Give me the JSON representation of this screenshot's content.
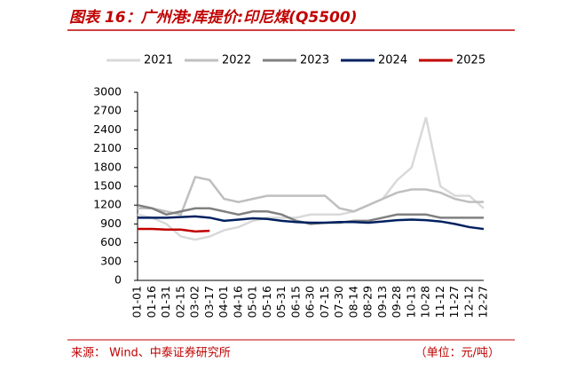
{
  "chart_data": {
    "type": "line",
    "title": "图表 16：广州港:库提价:印尼煤(Q5500)",
    "source": "来源：  Wind、中泰证券研究所",
    "unit_note": "（单位：元/吨）",
    "categories": [
      "01-01",
      "01-16",
      "01-31",
      "02-15",
      "03-02",
      "03-17",
      "04-01",
      "04-16",
      "05-01",
      "05-16",
      "05-31",
      "06-15",
      "06-30",
      "07-15",
      "07-30",
      "08-14",
      "08-29",
      "09-13",
      "09-28",
      "10-13",
      "10-28",
      "11-12",
      "11-27",
      "12-12",
      "12-27"
    ],
    "series": [
      {
        "name": "2021",
        "color": "#d9d9d9",
        "values": [
          1050,
          1000,
          900,
          700,
          650,
          700,
          800,
          850,
          950,
          1000,
          1000,
          1000,
          1050,
          1050,
          1050,
          1100,
          1200,
          1300,
          1600,
          1800,
          2600,
          1500,
          1350,
          1350,
          1150
        ]
      },
      {
        "name": "2022",
        "color": "#bfbfbf",
        "values": [
          1150,
          1150,
          1100,
          1050,
          1650,
          1600,
          1300,
          1250,
          1300,
          1350,
          1350,
          1350,
          1350,
          1350,
          1150,
          1100,
          1200,
          1300,
          1400,
          1450,
          1450,
          1400,
          1300,
          1250,
          1250
        ]
      },
      {
        "name": "2023",
        "color": "#808080",
        "values": [
          1200,
          1150,
          1050,
          1100,
          1150,
          1150,
          1100,
          1050,
          1100,
          1100,
          1050,
          950,
          900,
          920,
          920,
          950,
          950,
          1000,
          1050,
          1050,
          1050,
          1000,
          1000,
          1000,
          1000
        ]
      },
      {
        "name": "2024",
        "color": "#002060",
        "values": [
          1000,
          1000,
          1000,
          1010,
          1020,
          1000,
          950,
          970,
          990,
          980,
          950,
          930,
          920,
          920,
          930,
          930,
          920,
          940,
          960,
          970,
          960,
          940,
          900,
          850,
          820
        ]
      },
      {
        "name": "2025",
        "color": "#c00000",
        "values": [
          820,
          820,
          810,
          810,
          780,
          790,
          null,
          null,
          null,
          null,
          null,
          null,
          null,
          null,
          null,
          null,
          null,
          null,
          null,
          null,
          null,
          null,
          null,
          null,
          null
        ]
      }
    ],
    "ylim": [
      0,
      3000
    ],
    "yticks": [
      0,
      300,
      600,
      900,
      1200,
      1500,
      1800,
      2100,
      2400,
      2700,
      3000
    ]
  }
}
